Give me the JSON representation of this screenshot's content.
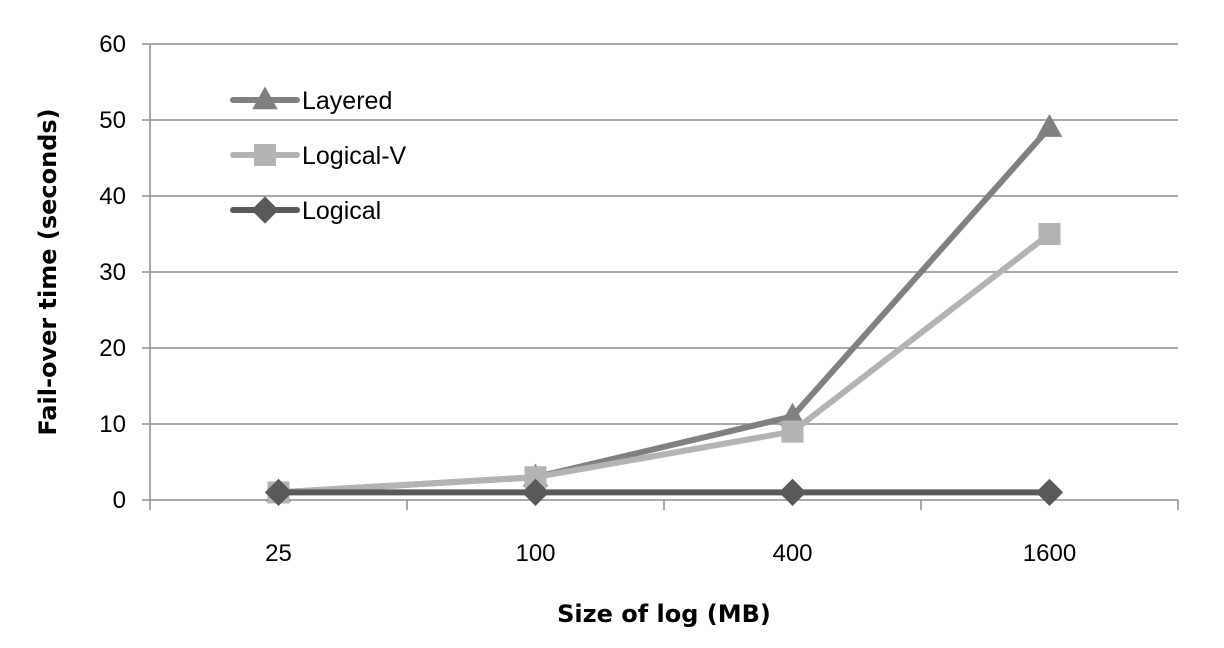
{
  "chart_data": {
    "type": "line",
    "title": "",
    "xlabel": "Size of log (MB)",
    "ylabel": "Fail-over time (seconds)",
    "categories": [
      "25",
      "100",
      "400",
      "1600"
    ],
    "ylim": [
      0,
      60
    ],
    "yticks": [
      0,
      10,
      20,
      30,
      40,
      50,
      60
    ],
    "grid": "horizontal",
    "legend_position": "top-left",
    "series": [
      {
        "name": "Layered",
        "values": [
          1,
          3,
          11,
          49
        ],
        "color": "#808080",
        "marker": "triangle"
      },
      {
        "name": "Logical-V",
        "values": [
          1,
          3,
          9,
          35
        ],
        "color": "#b3b3b3",
        "marker": "square"
      },
      {
        "name": "Logical",
        "values": [
          1,
          1,
          1,
          1
        ],
        "color": "#595959",
        "marker": "diamond"
      }
    ]
  }
}
